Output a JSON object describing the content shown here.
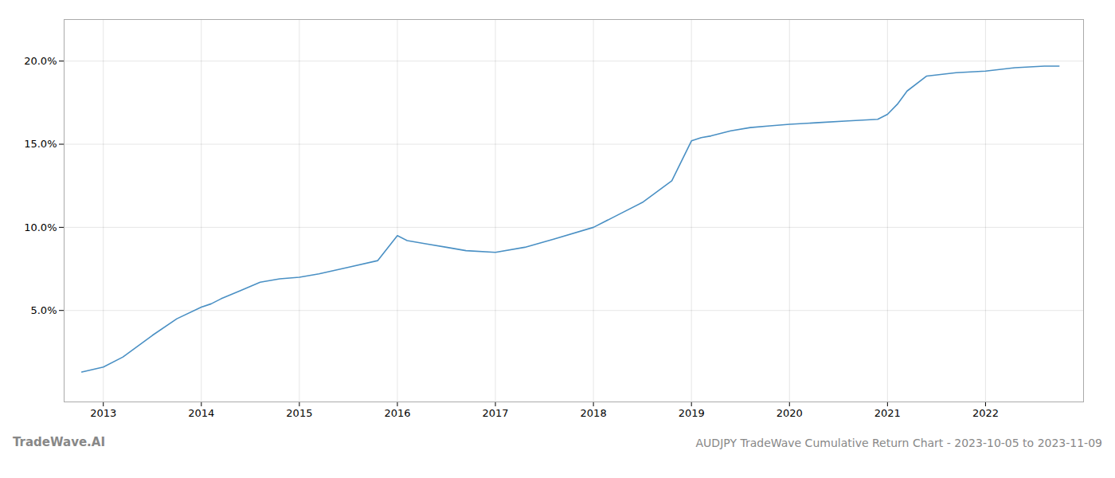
{
  "chart_data": {
    "type": "line",
    "title": "AUDJPY TradeWave Cumulative Return Chart - 2023-10-05 to 2023-11-09",
    "annotations": [
      "TradeWave.AI"
    ],
    "x": [
      2012.78,
      2013.0,
      2013.2,
      2013.5,
      2013.75,
      2014.0,
      2014.1,
      2014.2,
      2014.4,
      2014.6,
      2014.8,
      2015.0,
      2015.2,
      2015.5,
      2015.8,
      2016.0,
      2016.1,
      2016.3,
      2016.5,
      2016.7,
      2017.0,
      2017.3,
      2017.6,
      2018.0,
      2018.2,
      2018.5,
      2018.8,
      2019.0,
      2019.1,
      2019.2,
      2019.4,
      2019.6,
      2019.8,
      2020.0,
      2020.3,
      2020.6,
      2020.9,
      2021.0,
      2021.1,
      2021.2,
      2021.4,
      2021.7,
      2022.0,
      2022.3,
      2022.6,
      2022.75
    ],
    "values": [
      0.013,
      0.016,
      0.022,
      0.035,
      0.045,
      0.052,
      0.054,
      0.057,
      0.062,
      0.067,
      0.069,
      0.07,
      0.072,
      0.076,
      0.08,
      0.095,
      0.092,
      0.09,
      0.088,
      0.086,
      0.085,
      0.088,
      0.093,
      0.1,
      0.106,
      0.115,
      0.128,
      0.152,
      0.154,
      0.155,
      0.158,
      0.16,
      0.161,
      0.162,
      0.163,
      0.164,
      0.165,
      0.168,
      0.174,
      0.182,
      0.191,
      0.193,
      0.194,
      0.196,
      0.197,
      0.197
    ],
    "color": "#4a90c4",
    "xlim": [
      2012.6,
      2023.0
    ],
    "xticks": [
      2013,
      2014,
      2015,
      2016,
      2017,
      2018,
      2019,
      2020,
      2021,
      2022
    ],
    "ylim": [
      -0.005,
      0.225
    ],
    "yticks": [
      {
        "value": 0.05,
        "label": "5.0%"
      },
      {
        "value": 0.1,
        "label": "10.0%"
      },
      {
        "value": 0.15,
        "label": "15.0%"
      },
      {
        "value": 0.2,
        "label": "20.0%"
      }
    ],
    "grid": true
  }
}
